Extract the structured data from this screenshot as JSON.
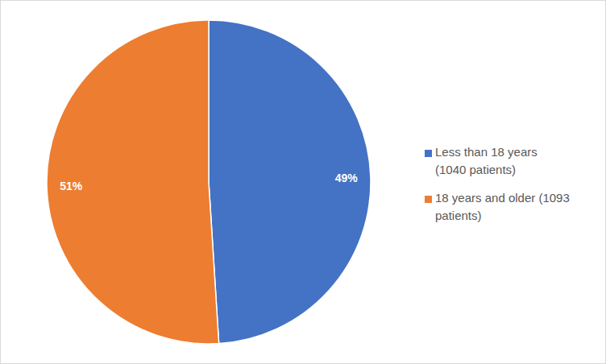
{
  "chart_data": {
    "type": "pie",
    "categories": [
      "Less than 18 years (1040 patients)",
      "18 years and older (1093 patients)"
    ],
    "values": [
      49,
      51
    ],
    "value_labels": [
      "49%",
      "51%"
    ],
    "colors": [
      "#4472c4",
      "#ed7d31"
    ],
    "data_labels": true,
    "legend": "right"
  }
}
